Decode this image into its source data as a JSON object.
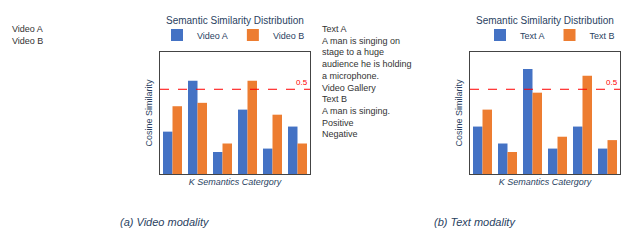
{
  "chart_data": [
    {
      "type": "bar",
      "title": "Semantic Similarity Distribution",
      "caption": "(a) Video modality",
      "x_label": "K Semantics Catergory",
      "y_label": "Cosine Similarity",
      "categories": [
        null,
        null,
        null,
        null,
        null,
        null
      ],
      "series": [
        {
          "name": "Video A",
          "color": "#4472C4",
          "values": [
            0.25,
            0.55,
            0.13,
            0.38,
            0.15,
            0.28
          ]
        },
        {
          "name": "Video B",
          "color": "#ED7D31",
          "values": [
            0.4,
            0.42,
            0.18,
            0.55,
            0.35,
            0.18
          ]
        }
      ],
      "ylim": [
        0,
        0.72
      ],
      "tick_labels": false,
      "grid": false,
      "legend": "upper right",
      "reference_line": {
        "value": 0.5,
        "label": "0.5",
        "color": "red",
        "line_style": "dashed"
      },
      "annotations": [
        "Video A",
        "Video B"
      ]
    },
    {
      "type": "bar",
      "title": "Semantic Similarity Distribution",
      "caption": "(b) Text modality",
      "x_label": "K Semantics Catergory",
      "y_label": "Cosine Similarity",
      "categories": [
        null,
        null,
        null,
        null,
        null,
        null
      ],
      "series": [
        {
          "name": "Text A",
          "color": "#4472C4",
          "values": [
            0.28,
            0.18,
            0.62,
            0.15,
            0.28,
            0.15
          ]
        },
        {
          "name": "Text B",
          "color": "#ED7D31",
          "values": [
            0.38,
            0.13,
            0.48,
            0.22,
            0.58,
            0.2
          ]
        }
      ],
      "ylim": [
        0,
        0.72
      ],
      "tick_labels": false,
      "grid": false,
      "legend": "upper right",
      "reference_line": {
        "value": 0.5,
        "label": "0.5",
        "color": "red",
        "line_style": "dashed"
      },
      "annotations": [
        "Text A",
        "A man is singing on stage to a huge audience he is holding a microphone.",
        "Video Gallery",
        "Text B",
        "A man is singing.",
        "Positive",
        "Negative"
      ]
    }
  ]
}
